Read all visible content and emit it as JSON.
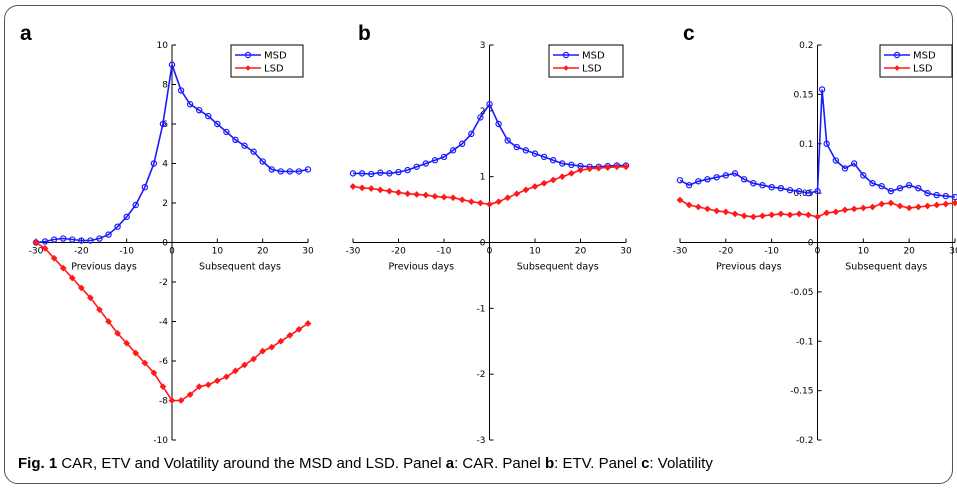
{
  "caption": {
    "fig": "Fig. 1",
    "text1": " CAR, ETV and Volatility around the MSD and LSD. Panel ",
    "a": "a",
    "text2": ": CAR. Panel ",
    "b": "b",
    "text3": ": ETV. Panel ",
    "c": "c",
    "text4": ": Volatility"
  },
  "colors": {
    "msd": "#1a1aff",
    "lsd": "#ff1a1a"
  },
  "chart_data": [
    {
      "panel": "a",
      "type": "line",
      "xlim": [
        -30,
        30
      ],
      "ylim": [
        -10,
        10
      ],
      "xticks": [
        "-30",
        "-20",
        "-10",
        "0",
        "10",
        "20",
        "30"
      ],
      "yticks": [
        "-10",
        "-8",
        "-6",
        "-4",
        "-2",
        "0",
        "2",
        "4",
        "6",
        "8",
        "10"
      ],
      "xlabel_left": "Previous days",
      "xlabel_right": "Subsequent days",
      "legend": [
        "MSD",
        "LSD"
      ],
      "series": [
        {
          "name": "MSD",
          "marker": "circle",
          "x": [
            -30,
            -28,
            -26,
            -24,
            -22,
            -20,
            -18,
            -16,
            -14,
            -12,
            -10,
            -8,
            -6,
            -4,
            -2,
            0,
            2,
            4,
            6,
            8,
            10,
            12,
            14,
            16,
            18,
            20,
            22,
            24,
            26,
            28,
            30
          ],
          "y": [
            0.0,
            0.05,
            0.15,
            0.2,
            0.15,
            0.1,
            0.1,
            0.2,
            0.4,
            0.8,
            1.3,
            1.9,
            2.8,
            4.0,
            6.0,
            9.0,
            7.7,
            7.0,
            6.7,
            6.4,
            6.0,
            5.6,
            5.2,
            4.9,
            4.6,
            4.1,
            3.7,
            3.6,
            3.6,
            3.6,
            3.7
          ]
        },
        {
          "name": "LSD",
          "marker": "diamond",
          "x": [
            -30,
            -28,
            -26,
            -24,
            -22,
            -20,
            -18,
            -16,
            -14,
            -12,
            -10,
            -8,
            -6,
            -4,
            -2,
            0,
            2,
            4,
            6,
            8,
            10,
            12,
            14,
            16,
            18,
            20,
            22,
            24,
            26,
            28,
            30
          ],
          "y": [
            0.0,
            -0.3,
            -0.8,
            -1.3,
            -1.8,
            -2.3,
            -2.8,
            -3.4,
            -4.0,
            -4.6,
            -5.1,
            -5.6,
            -6.1,
            -6.6,
            -7.3,
            -8.0,
            -8.0,
            -7.7,
            -7.3,
            -7.2,
            -7.0,
            -6.8,
            -6.5,
            -6.2,
            -5.9,
            -5.5,
            -5.3,
            -5.0,
            -4.7,
            -4.4,
            -4.1
          ]
        }
      ]
    },
    {
      "panel": "b",
      "type": "line",
      "xlim": [
        -30,
        30
      ],
      "ylim": [
        -3,
        3
      ],
      "xticks": [
        "-30",
        "-20",
        "-10",
        "0",
        "10",
        "20",
        "30"
      ],
      "yticks": [
        "-3",
        "-2",
        "-1",
        "0",
        "1",
        "2",
        "3"
      ],
      "xlabel_left": "Previous days",
      "xlabel_right": "Subsequent days",
      "legend": [
        "MSD",
        "LSD"
      ],
      "series": [
        {
          "name": "MSD",
          "marker": "circle",
          "x": [
            -30,
            -28,
            -26,
            -24,
            -22,
            -20,
            -18,
            -16,
            -14,
            -12,
            -10,
            -8,
            -6,
            -4,
            -2,
            0,
            2,
            4,
            6,
            8,
            10,
            12,
            14,
            16,
            18,
            20,
            22,
            24,
            26,
            28,
            30
          ],
          "y": [
            1.05,
            1.05,
            1.04,
            1.06,
            1.05,
            1.07,
            1.1,
            1.15,
            1.2,
            1.25,
            1.3,
            1.4,
            1.5,
            1.65,
            1.9,
            2.1,
            1.8,
            1.55,
            1.45,
            1.4,
            1.35,
            1.3,
            1.25,
            1.2,
            1.18,
            1.16,
            1.15,
            1.15,
            1.16,
            1.17,
            1.17
          ]
        },
        {
          "name": "LSD",
          "marker": "diamond",
          "x": [
            -30,
            -28,
            -26,
            -24,
            -22,
            -20,
            -18,
            -16,
            -14,
            -12,
            -10,
            -8,
            -6,
            -4,
            -2,
            0,
            2,
            4,
            6,
            8,
            10,
            12,
            14,
            16,
            18,
            20,
            22,
            24,
            26,
            28,
            30
          ],
          "y": [
            0.85,
            0.83,
            0.82,
            0.8,
            0.78,
            0.76,
            0.74,
            0.73,
            0.72,
            0.7,
            0.69,
            0.68,
            0.65,
            0.62,
            0.6,
            0.58,
            0.62,
            0.68,
            0.74,
            0.8,
            0.85,
            0.9,
            0.95,
            1.0,
            1.05,
            1.1,
            1.12,
            1.13,
            1.14,
            1.15,
            1.15
          ]
        }
      ]
    },
    {
      "panel": "c",
      "type": "line",
      "xlim": [
        -30,
        30
      ],
      "ylim": [
        -0.2,
        0.2
      ],
      "xticks": [
        "-30",
        "-20",
        "-10",
        "0",
        "10",
        "20",
        "30"
      ],
      "yticks": [
        "-0.2",
        "-0.15",
        "-0.1",
        "-0.05",
        "0",
        "0.05",
        "0.1",
        "0.15",
        "0.2"
      ],
      "xlabel_left": "Previous days",
      "xlabel_right": "Subsequent days",
      "legend": [
        "MSD",
        "LSD"
      ],
      "series": [
        {
          "name": "MSD",
          "marker": "circle",
          "x": [
            -30,
            -28,
            -26,
            -24,
            -22,
            -20,
            -18,
            -16,
            -14,
            -12,
            -10,
            -8,
            -6,
            -4,
            -2,
            0,
            1,
            2,
            4,
            6,
            8,
            10,
            12,
            14,
            16,
            18,
            20,
            22,
            24,
            26,
            28,
            30
          ],
          "y": [
            0.063,
            0.058,
            0.062,
            0.064,
            0.066,
            0.068,
            0.07,
            0.064,
            0.06,
            0.058,
            0.056,
            0.055,
            0.053,
            0.052,
            0.05,
            0.052,
            0.155,
            0.1,
            0.083,
            0.075,
            0.08,
            0.068,
            0.06,
            0.057,
            0.052,
            0.055,
            0.058,
            0.055,
            0.05,
            0.048,
            0.047,
            0.046
          ]
        },
        {
          "name": "LSD",
          "marker": "diamond",
          "x": [
            -30,
            -28,
            -26,
            -24,
            -22,
            -20,
            -18,
            -16,
            -14,
            -12,
            -10,
            -8,
            -6,
            -4,
            -2,
            0,
            2,
            4,
            6,
            8,
            10,
            12,
            14,
            16,
            18,
            20,
            22,
            24,
            26,
            28,
            30
          ],
          "y": [
            0.043,
            0.038,
            0.036,
            0.034,
            0.032,
            0.031,
            0.029,
            0.027,
            0.026,
            0.027,
            0.028,
            0.029,
            0.028,
            0.029,
            0.028,
            0.026,
            0.03,
            0.031,
            0.033,
            0.034,
            0.035,
            0.036,
            0.039,
            0.04,
            0.037,
            0.035,
            0.036,
            0.037,
            0.038,
            0.039,
            0.04
          ]
        }
      ]
    }
  ]
}
